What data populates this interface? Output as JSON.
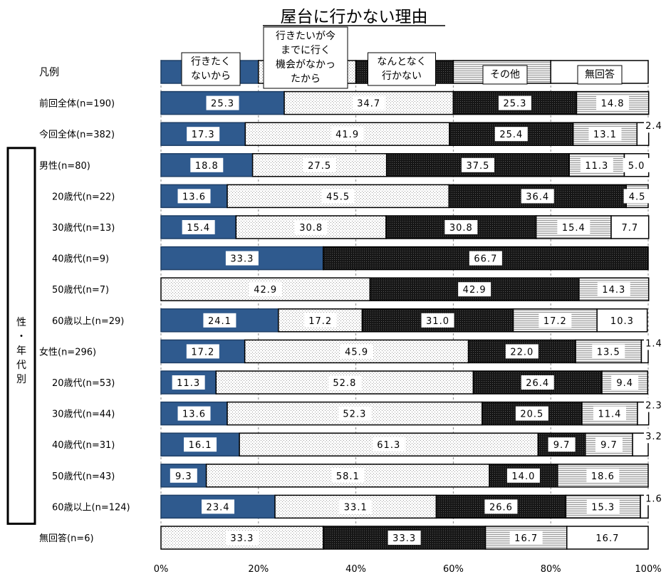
{
  "chart_data": {
    "type": "bar",
    "orientation": "horizontal",
    "stacked": "percent",
    "title": "屋台に行かない理由",
    "xlim": [
      0,
      100
    ],
    "x_ticks": [
      "0%",
      "20%",
      "40%",
      "60%",
      "80%",
      "100%"
    ],
    "grid": true,
    "legend": {
      "row_label": "凡例",
      "entries": [
        {
          "label": "行きたく\nないから"
        },
        {
          "label": "行きたいが今\nまでに行く\n機会がなかっ\nたから"
        },
        {
          "label": "なんとなく\n行かない"
        },
        {
          "label": "その他"
        },
        {
          "label": "無回答"
        }
      ]
    },
    "group_label": "性・年代別",
    "categories": [
      "前回全体(n=190)",
      "今回全体(n=382)",
      "男性(n=80)",
      "20歳代(n=22)",
      "30歳代(n=13)",
      "40歳代(n=9)",
      "50歳代(n=7)",
      "60歳以上(n=29)",
      "女性(n=296)",
      "20歳代(n=53)",
      "30歳代(n=44)",
      "40歳代(n=31)",
      "50歳代(n=43)",
      "60歳以上(n=124)",
      "無回答(n=6)"
    ],
    "series": [
      {
        "name": "行きたくないから",
        "color": "#2f5a8e",
        "values": [
          25.3,
          17.3,
          18.8,
          13.6,
          15.4,
          33.3,
          0,
          24.1,
          17.2,
          11.3,
          13.6,
          16.1,
          9.3,
          23.4,
          0
        ]
      },
      {
        "name": "行きたいが今までに行く機会がなかったから",
        "color": "#f2f2f2",
        "values": [
          34.7,
          41.9,
          27.5,
          45.5,
          30.8,
          0,
          42.9,
          17.2,
          45.9,
          52.8,
          52.3,
          61.3,
          58.1,
          33.1,
          33.3
        ]
      },
      {
        "name": "なんとなく行かない",
        "color": "#2a2a2a",
        "values": [
          25.3,
          25.4,
          37.5,
          36.4,
          30.8,
          66.7,
          42.9,
          31.0,
          22.0,
          26.4,
          20.5,
          9.7,
          14.0,
          26.6,
          33.3
        ]
      },
      {
        "name": "その他",
        "color": "#cccccc",
        "values": [
          14.8,
          13.1,
          11.3,
          4.5,
          15.4,
          0,
          14.3,
          17.2,
          13.5,
          9.4,
          11.4,
          9.7,
          18.6,
          15.3,
          16.7
        ]
      },
      {
        "name": "無回答",
        "color": "#ffffff",
        "values": [
          0,
          2.4,
          5.0,
          0,
          7.7,
          0,
          0,
          10.3,
          1.4,
          0,
          2.3,
          3.2,
          0,
          1.6,
          16.7
        ]
      }
    ],
    "labels": [
      [
        "25.3",
        "34.7",
        "25.3",
        "14.8",
        ""
      ],
      [
        "17.3",
        "41.9",
        "25.4",
        "13.1",
        "2.4"
      ],
      [
        "18.8",
        "27.5",
        "37.5",
        "11.3",
        "5.0"
      ],
      [
        "13.6",
        "45.5",
        "36.4",
        "4.5",
        ""
      ],
      [
        "15.4",
        "30.8",
        "30.8",
        "15.4",
        "7.7"
      ],
      [
        "33.3",
        "",
        "66.7",
        "",
        ""
      ],
      [
        "",
        "42.9",
        "42.9",
        "14.3",
        ""
      ],
      [
        "24.1",
        "17.2",
        "31.0",
        "17.2",
        "10.3"
      ],
      [
        "17.2",
        "45.9",
        "22.0",
        "13.5",
        "1.4"
      ],
      [
        "11.3",
        "52.8",
        "26.4",
        "9.4",
        ""
      ],
      [
        "13.6",
        "52.3",
        "20.5",
        "11.4",
        "2.3"
      ],
      [
        "16.1",
        "61.3",
        "9.7",
        "9.7",
        "3.2"
      ],
      [
        "9.3",
        "58.1",
        "14.0",
        "18.6",
        ""
      ],
      [
        "23.4",
        "33.1",
        "26.6",
        "15.3",
        "1.6"
      ],
      [
        "",
        "33.3",
        "33.3",
        "16.7",
        "16.7"
      ]
    ]
  }
}
